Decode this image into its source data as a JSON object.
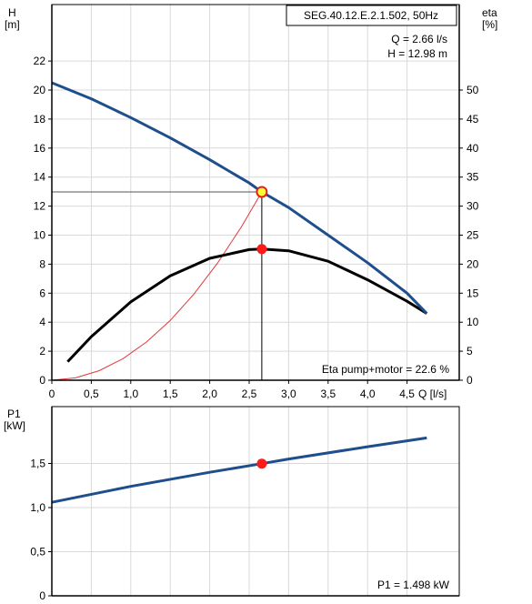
{
  "chart_data": [
    {
      "type": "line",
      "title": "SEG.40.12.E.2.1.502, 50Hz",
      "xlabel": "Q [l/s]",
      "ylabel_unit_left": [
        "H",
        "[m]"
      ],
      "ylabel_unit_right": [
        "eta",
        "[%]"
      ],
      "xlim": [
        0,
        5
      ],
      "ylim_left": [
        0,
        24
      ],
      "ylim_right": [
        0,
        60
      ],
      "x_ticks": [
        "0",
        "0,5",
        "1,0",
        "1,5",
        "2,0",
        "2,5",
        "3,0",
        "3,5",
        "4,0",
        "4,5"
      ],
      "x_tick_values": [
        0,
        0.5,
        1.0,
        1.5,
        2.0,
        2.5,
        3.0,
        3.5,
        4.0,
        4.5
      ],
      "y_left_ticks": [
        "0",
        "2",
        "4",
        "6",
        "8",
        "10",
        "12",
        "14",
        "16",
        "18",
        "20",
        "22"
      ],
      "y_left_tick_values": [
        0,
        2,
        4,
        6,
        8,
        10,
        12,
        14,
        16,
        18,
        20,
        22
      ],
      "y_right_ticks": [
        "0",
        "5",
        "10",
        "15",
        "20",
        "25",
        "30",
        "35",
        "40",
        "45",
        "50"
      ],
      "y_right_tick_values": [
        0,
        5,
        10,
        15,
        20,
        25,
        30,
        35,
        40,
        45,
        50
      ],
      "grid": true,
      "annotations": {
        "q": "Q = 2.66 l/s",
        "h": "H = 12.98 m",
        "eta": "Eta pump+motor = 22.6 %"
      },
      "duty_point": {
        "q": 2.66,
        "h": 12.98,
        "eta": 22.6
      },
      "series": [
        {
          "axis": "left",
          "color": "#1f4e8c",
          "x": [
            0,
            0.5,
            1.0,
            1.5,
            2.0,
            2.5,
            2.66,
            3.0,
            3.5,
            4.0,
            4.5,
            4.75
          ],
          "y": [
            20.5,
            19.4,
            18.1,
            16.7,
            15.2,
            13.6,
            12.98,
            11.9,
            10.0,
            8.1,
            6.0,
            4.6
          ]
        },
        {
          "axis": "right",
          "color": "#000000",
          "x": [
            0.2,
            0.5,
            1.0,
            1.5,
            2.0,
            2.5,
            2.66,
            3.0,
            3.5,
            4.0,
            4.5,
            4.75
          ],
          "y": [
            3.2,
            7.5,
            13.5,
            18.0,
            21.0,
            22.5,
            22.6,
            22.3,
            20.5,
            17.3,
            13.6,
            11.5
          ]
        },
        {
          "axis": "left",
          "color": "#e03a3a",
          "x": [
            0,
            0.3,
            0.6,
            0.9,
            1.2,
            1.5,
            1.8,
            2.1,
            2.4,
            2.66
          ],
          "y": [
            0,
            0.16,
            0.66,
            1.48,
            2.64,
            4.12,
            5.94,
            8.08,
            10.56,
            12.98
          ]
        }
      ]
    },
    {
      "type": "line",
      "ylabel_unit": [
        "P1",
        "[kW]"
      ],
      "xlim": [
        0,
        5
      ],
      "ylim": [
        0,
        2
      ],
      "y_ticks": [
        "0",
        "0,5",
        "1,0",
        "1,5"
      ],
      "y_tick_values": [
        0,
        0.5,
        1.0,
        1.5
      ],
      "grid": true,
      "annotation": "P1 = 1.498 kW",
      "duty_point": {
        "q": 2.66,
        "p1": 1.498
      },
      "series": [
        {
          "color": "#1f4e8c",
          "x": [
            0,
            1.0,
            2.0,
            2.66,
            3.0,
            4.0,
            4.75
          ],
          "y": [
            1.06,
            1.24,
            1.4,
            1.498,
            1.55,
            1.69,
            1.79
          ]
        }
      ]
    }
  ]
}
